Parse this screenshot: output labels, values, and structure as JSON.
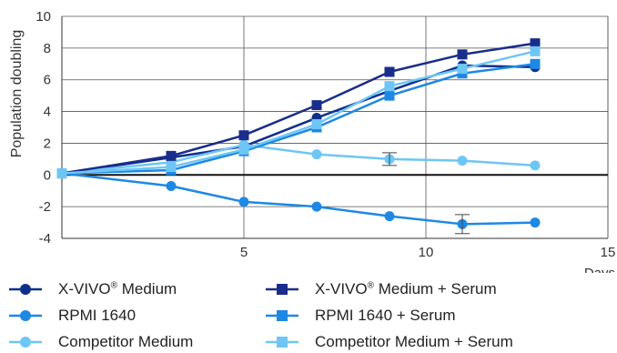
{
  "chart_data": {
    "type": "line",
    "xlabel": "Days",
    "ylabel": "Population doubling",
    "xlim": [
      0,
      15
    ],
    "ylim": [
      -4,
      10
    ],
    "x_ticks": [
      "5",
      "10",
      "15"
    ],
    "y_ticks": [
      "-4",
      "-2",
      "0",
      "2",
      "4",
      "6",
      "8",
      "10"
    ],
    "grid": true,
    "legend_position": "bottom",
    "series": [
      {
        "name": "X-VIVO® Medium",
        "marker": "circle",
        "color": "#0d2f8c",
        "x": [
          0,
          3,
          5,
          7,
          9,
          11,
          13
        ],
        "y": [
          0.1,
          1.1,
          1.8,
          3.6,
          5.3,
          6.9,
          6.8
        ]
      },
      {
        "name": "RPMI 1640",
        "marker": "circle",
        "color": "#1e88e5",
        "x": [
          0,
          3,
          5,
          7,
          9,
          11,
          13
        ],
        "y": [
          0.1,
          -0.7,
          -1.7,
          -2.0,
          -2.6,
          -3.1,
          -3.0
        ],
        "error_bars": [
          {
            "x": 11,
            "low": -3.7,
            "high": -2.5
          }
        ]
      },
      {
        "name": "Competitor Medium",
        "marker": "circle",
        "color": "#6ec6f5",
        "x": [
          0,
          3,
          5,
          7,
          9,
          11,
          13
        ],
        "y": [
          0.1,
          0.8,
          1.9,
          1.3,
          1.0,
          0.9,
          0.6
        ],
        "error_bars": [
          {
            "x": 9,
            "low": 0.6,
            "high": 1.4
          }
        ]
      },
      {
        "name": "X-VIVO® Medium + Serum",
        "marker": "square",
        "color": "#1a2d8a",
        "x": [
          0,
          3,
          5,
          7,
          9,
          11,
          13
        ],
        "y": [
          0.1,
          1.2,
          2.5,
          4.4,
          6.5,
          7.6,
          8.3
        ]
      },
      {
        "name": "RPMI 1640 + Serum",
        "marker": "square",
        "color": "#1e88e5",
        "x": [
          0,
          3,
          5,
          7,
          9,
          11,
          13
        ],
        "y": [
          0.1,
          0.3,
          1.5,
          3.0,
          5.0,
          6.4,
          7.0
        ]
      },
      {
        "name": "Competitor Medium + Serum",
        "marker": "square",
        "color": "#6ec6f5",
        "x": [
          0,
          3,
          5,
          7,
          9,
          11,
          13
        ],
        "y": [
          0.1,
          0.5,
          1.6,
          3.2,
          5.6,
          6.7,
          7.8
        ]
      }
    ]
  },
  "legend": {
    "items": [
      {
        "brand": "X-VIVO",
        "reg": "®",
        "rest": " Medium"
      },
      {
        "brand": "RPMI 1640",
        "reg": "",
        "rest": ""
      },
      {
        "brand": "Competitor Medium",
        "reg": "",
        "rest": ""
      },
      {
        "brand": "X-VIVO",
        "reg": "®",
        "rest": " Medium + Serum"
      },
      {
        "brand": "RPMI 1640 + Serum",
        "reg": "",
        "rest": ""
      },
      {
        "brand": "Competitor Medium + Serum",
        "reg": "",
        "rest": ""
      }
    ]
  }
}
